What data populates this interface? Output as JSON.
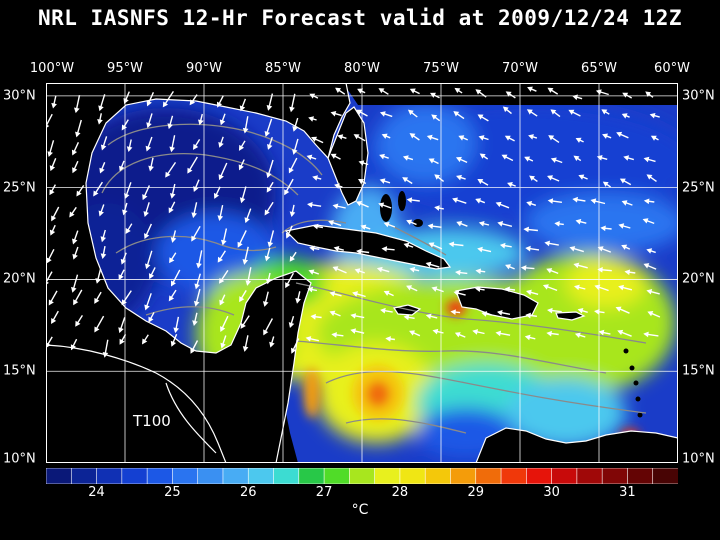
{
  "title": "NRL IASNFS  12-Hr Forecast valid at 2009/12/24 12Z",
  "map": {
    "tag": "T100",
    "lon_labels": [
      "100°W",
      "95°W",
      "90°W",
      "85°W",
      "80°W",
      "75°W",
      "70°W",
      "65°W",
      "60°W"
    ],
    "lat_labels": [
      "30°N",
      "25°N",
      "20°N",
      "15°N",
      "10°N"
    ],
    "lon_range": [
      -100,
      -60
    ],
    "lat_range": [
      10,
      30.7
    ],
    "colors": {
      "land": "#000000",
      "coast": "#ffffff",
      "contour": "#8a8a8a",
      "grid": "#ffffff",
      "vectors": "#ffffff"
    }
  },
  "colorbar": {
    "unit": "°C",
    "tick_labels": [
      "24",
      "25",
      "26",
      "27",
      "28",
      "29",
      "30",
      "31"
    ],
    "colors": [
      "#0a1878",
      "#0c2496",
      "#1030b4",
      "#1440d2",
      "#1c58e6",
      "#2a74f0",
      "#3a90f2",
      "#48acf4",
      "#4cc8ee",
      "#3cdcd2",
      "#28c848",
      "#50dc28",
      "#a8e61e",
      "#e8f01e",
      "#f0e614",
      "#f4c80a",
      "#f49c0a",
      "#f06c0a",
      "#f0380a",
      "#e6140a",
      "#c80a0a",
      "#a00808",
      "#800606",
      "#640404",
      "#480404"
    ]
  }
}
